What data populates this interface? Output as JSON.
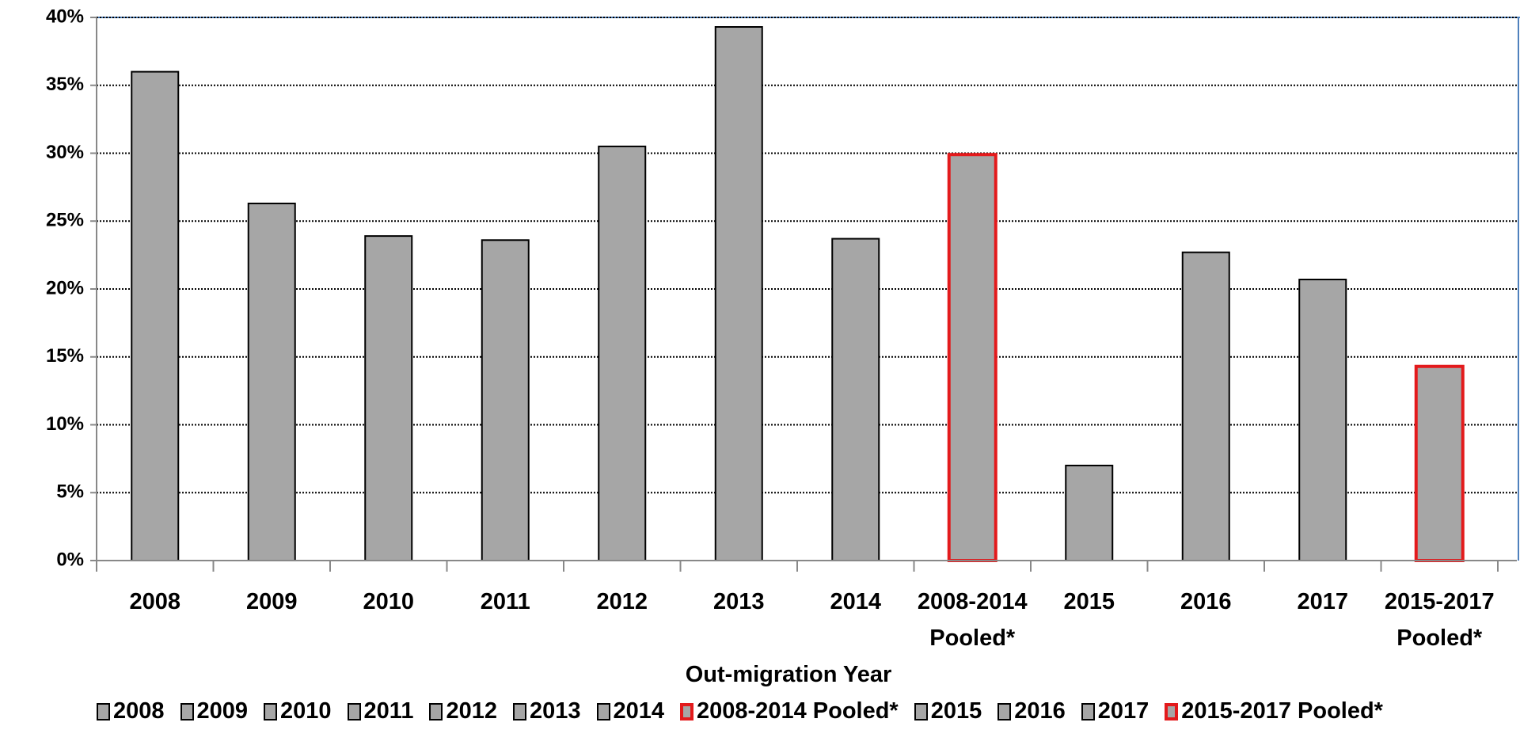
{
  "chart_data": {
    "type": "bar",
    "x_label": "Out-migration Year",
    "categories": [
      "2008",
      "2009",
      "2010",
      "2011",
      "2012",
      "2013",
      "2014",
      "2008-2014 Pooled*",
      "2015",
      "2016",
      "2017",
      "2015-2017 Pooled*"
    ],
    "values": [
      36.0,
      26.3,
      23.9,
      23.6,
      30.5,
      39.3,
      23.7,
      29.9,
      7.0,
      22.7,
      20.7,
      14.3
    ],
    "color": "#a6a6a6",
    "edge_colors": [
      "#000000",
      "#000000",
      "#000000",
      "#000000",
      "#000000",
      "#000000",
      "#000000",
      "#e31a1c",
      "#000000",
      "#000000",
      "#000000",
      "#e31a1c"
    ],
    "ylim": [
      0,
      40
    ],
    "yticks": [
      {
        "value": 0,
        "label": "0%"
      },
      {
        "value": 5,
        "label": "5%"
      },
      {
        "value": 10,
        "label": "10%"
      },
      {
        "value": 15,
        "label": "15%"
      },
      {
        "value": 20,
        "label": "20%"
      },
      {
        "value": 25,
        "label": "25%"
      },
      {
        "value": 30,
        "label": "30%"
      },
      {
        "value": 35,
        "label": "35%"
      },
      {
        "value": 40,
        "label": "40%"
      }
    ],
    "grid": true,
    "legend": "bottom"
  }
}
